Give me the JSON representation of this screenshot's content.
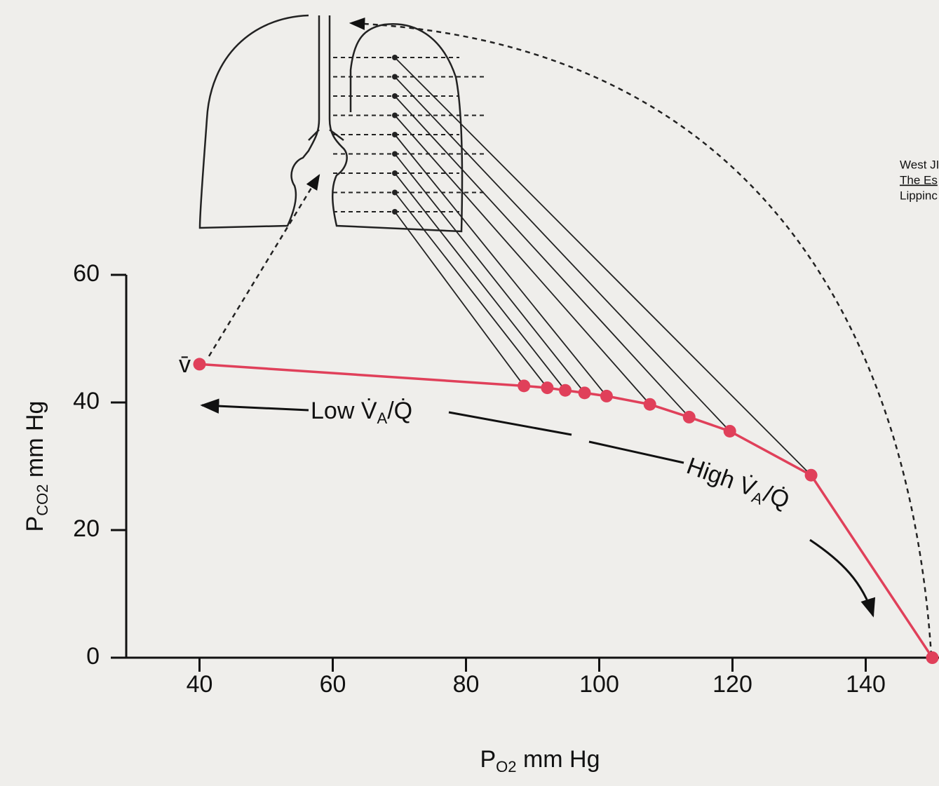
{
  "chart_data": {
    "type": "line",
    "x": [
      40,
      88.7,
      92.2,
      94.9,
      97.8,
      101.1,
      107.6,
      113.5,
      119.6,
      131.8,
      150
    ],
    "values": [
      46,
      42.6,
      42.3,
      41.9,
      41.5,
      41.0,
      39.7,
      37.7,
      35.5,
      28.6,
      0
    ],
    "color": "#e0405a",
    "xlim": [
      29,
      151
    ],
    "xticks": [
      40,
      60,
      80,
      100,
      120,
      140
    ],
    "ylim": [
      0,
      60
    ],
    "yticks": [
      0,
      20,
      40,
      60
    ],
    "x_label": {
      "main": "P",
      "sub": "O2",
      "rest": " mm Hg"
    },
    "y_label": {
      "main": "P",
      "sub": "CO2",
      "rest": " mm Hg"
    },
    "annotations": {
      "mixed_venous": "v̄",
      "low": {
        "text": "Low V̇",
        "sub": "A",
        "rest": "/Q̇"
      },
      "high": {
        "text": "High V̇",
        "sub": "A",
        "rest": "/Q̇"
      }
    },
    "citation": [
      "West JI",
      "The Es",
      "Lippinc"
    ]
  }
}
